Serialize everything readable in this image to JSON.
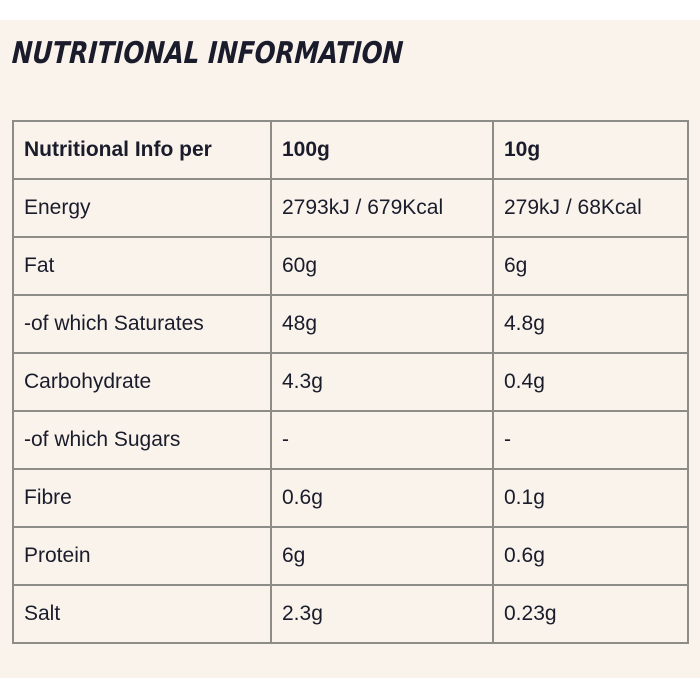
{
  "page": {
    "title": "NUTRITIONAL INFORMATION"
  },
  "table": {
    "columns": {
      "label": "Nutritional Info per",
      "col100g": "100g",
      "col10g": "10g"
    },
    "rows": [
      {
        "label": "Energy",
        "per100g": "2793kJ / 679Kcal",
        "per10g": "279kJ / 68Kcal"
      },
      {
        "label": "Fat",
        "per100g": "60g",
        "per10g": "6g"
      },
      {
        "label": "-of which Saturates",
        "per100g": "48g",
        "per10g": "4.8g"
      },
      {
        "label": "Carbohydrate",
        "per100g": "4.3g",
        "per10g": "0.4g"
      },
      {
        "label": "-of which Sugars",
        "per100g": "-",
        "per10g": "-"
      },
      {
        "label": "Fibre",
        "per100g": "0.6g",
        "per10g": "0.1g"
      },
      {
        "label": "Protein",
        "per100g": "6g",
        "per10g": "0.6g"
      },
      {
        "label": "Salt",
        "per100g": "2.3g",
        "per10g": "0.23g"
      }
    ]
  },
  "colors": {
    "cream": "#f9f3eb",
    "border": "#8e8c87",
    "ink": "#1a1c2c",
    "page": "#ffffff"
  }
}
